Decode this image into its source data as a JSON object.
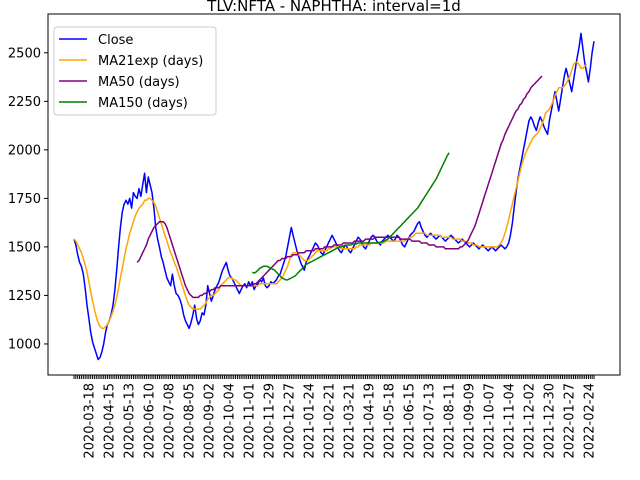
{
  "chart_data": {
    "type": "line",
    "title": "TLV:NFTA - NAPHTHA: interval=1d",
    "xlabel": "",
    "ylabel": "",
    "ylim": [
      840,
      2700
    ],
    "y_ticks": [
      1000,
      1250,
      1500,
      1750,
      2000,
      2250,
      2500
    ],
    "x_ticks": [
      "2020-03-18",
      "2020-04-15",
      "2020-05-13",
      "2020-06-10",
      "2020-07-08",
      "2020-08-05",
      "2020-09-02",
      "2020-10-04",
      "2020-11-01",
      "2020-11-29",
      "2020-12-27",
      "2021-01-24",
      "2021-02-21",
      "2021-03-21",
      "2021-04-19",
      "2021-05-18",
      "2021-06-15",
      "2021-07-13",
      "2021-08-11",
      "2021-09-09",
      "2021-10-07",
      "2021-11-04",
      "2021-12-02",
      "2021-12-30",
      "2022-01-27",
      "2022-02-24"
    ],
    "grid": false,
    "legend_position": "top-left",
    "series": [
      {
        "name": "Close",
        "color": "#0000ff",
        "x_start": 0,
        "values": [
          1540,
          1510,
          1460,
          1420,
          1400,
          1360,
          1290,
          1200,
          1130,
          1060,
          1010,
          980,
          950,
          920,
          930,
          960,
          1000,
          1060,
          1100,
          1120,
          1150,
          1200,
          1280,
          1380,
          1500,
          1600,
          1680,
          1720,
          1740,
          1720,
          1750,
          1700,
          1780,
          1760,
          1750,
          1800,
          1760,
          1820,
          1880,
          1780,
          1860,
          1820,
          1780,
          1700,
          1600,
          1540,
          1500,
          1450,
          1420,
          1380,
          1340,
          1320,
          1300,
          1360,
          1300,
          1260,
          1250,
          1230,
          1200,
          1150,
          1120,
          1100,
          1080,
          1110,
          1150,
          1200,
          1130,
          1100,
          1120,
          1160,
          1150,
          1200,
          1300,
          1260,
          1220,
          1250,
          1280,
          1300,
          1320,
          1350,
          1380,
          1400,
          1420,
          1380,
          1350,
          1340,
          1320,
          1300,
          1280,
          1260,
          1280,
          1300,
          1310,
          1290,
          1320,
          1300,
          1320,
          1280,
          1300,
          1310,
          1330,
          1320,
          1340,
          1300,
          1290,
          1300,
          1320,
          1310,
          1320,
          1330,
          1350,
          1360,
          1390,
          1420,
          1450,
          1500,
          1550,
          1600,
          1560,
          1520,
          1480,
          1450,
          1420,
          1400,
          1380,
          1420,
          1440,
          1460,
          1480,
          1500,
          1520,
          1510,
          1490,
          1470,
          1460,
          1480,
          1500,
          1520,
          1540,
          1560,
          1540,
          1520,
          1500,
          1480,
          1470,
          1490,
          1510,
          1500,
          1480,
          1470,
          1490,
          1510,
          1530,
          1550,
          1540,
          1520,
          1500,
          1490,
          1510,
          1530,
          1550,
          1560,
          1550,
          1530,
          1520,
          1510,
          1530,
          1540,
          1550,
          1560,
          1550,
          1540,
          1530,
          1540,
          1560,
          1550,
          1530,
          1510,
          1500,
          1520,
          1540,
          1560,
          1570,
          1580,
          1600,
          1620,
          1630,
          1600,
          1580,
          1560,
          1550,
          1560,
          1570,
          1560,
          1550,
          1540,
          1550,
          1560,
          1550,
          1540,
          1530,
          1540,
          1550,
          1560,
          1550,
          1540,
          1530,
          1520,
          1530,
          1540,
          1530,
          1520,
          1510,
          1500,
          1510,
          1520,
          1510,
          1500,
          1490,
          1500,
          1510,
          1500,
          1490,
          1480,
          1490,
          1500,
          1490,
          1480,
          1490,
          1500,
          1510,
          1500,
          1490,
          1500,
          1520,
          1560,
          1620,
          1700,
          1780,
          1850,
          1900,
          1950,
          2000,
          2050,
          2100,
          2150,
          2170,
          2150,
          2120,
          2100,
          2140,
          2170,
          2150,
          2120,
          2100,
          2080,
          2150,
          2200,
          2250,
          2300,
          2250,
          2200,
          2260,
          2320,
          2380,
          2420,
          2380,
          2340,
          2300,
          2360,
          2420,
          2480,
          2530,
          2600,
          2520,
          2450,
          2400,
          2350,
          2420,
          2500,
          2560
        ]
      },
      {
        "name": "MA21exp (days)",
        "color": "#ffa500",
        "x_start": 0,
        "values": [
          1540,
          1530,
          1510,
          1490,
          1470,
          1440,
          1410,
          1370,
          1320,
          1270,
          1220,
          1180,
          1140,
          1110,
          1090,
          1080,
          1080,
          1090,
          1100,
          1120,
          1140,
          1170,
          1200,
          1240,
          1290,
          1340,
          1390,
          1440,
          1490,
          1530,
          1570,
          1600,
          1630,
          1660,
          1680,
          1700,
          1710,
          1720,
          1740,
          1740,
          1750,
          1750,
          1740,
          1730,
          1710,
          1680,
          1650,
          1620,
          1590,
          1560,
          1530,
          1500,
          1470,
          1450,
          1420,
          1400,
          1370,
          1340,
          1310,
          1280,
          1250,
          1220,
          1200,
          1190,
          1180,
          1180,
          1180,
          1180,
          1180,
          1190,
          1200,
          1210,
          1230,
          1240,
          1250,
          1250,
          1260,
          1270,
          1280,
          1300,
          1310,
          1320,
          1330,
          1340,
          1340,
          1340,
          1330,
          1330,
          1320,
          1310,
          1300,
          1300,
          1300,
          1300,
          1300,
          1300,
          1300,
          1300,
          1300,
          1300,
          1310,
          1310,
          1310,
          1310,
          1310,
          1310,
          1310,
          1310,
          1310,
          1310,
          1320,
          1330,
          1340,
          1360,
          1380,
          1400,
          1430,
          1460,
          1470,
          1470,
          1470,
          1460,
          1450,
          1440,
          1430,
          1430,
          1430,
          1440,
          1450,
          1460,
          1470,
          1480,
          1480,
          1480,
          1480,
          1480,
          1480,
          1490,
          1490,
          1500,
          1500,
          1500,
          1500,
          1500,
          1490,
          1490,
          1490,
          1490,
          1490,
          1490,
          1490,
          1490,
          1500,
          1500,
          1510,
          1510,
          1510,
          1510,
          1510,
          1510,
          1520,
          1520,
          1520,
          1520,
          1520,
          1520,
          1520,
          1520,
          1530,
          1530,
          1530,
          1530,
          1530,
          1530,
          1530,
          1530,
          1530,
          1530,
          1530,
          1540,
          1540,
          1550,
          1550,
          1560,
          1570,
          1570,
          1570,
          1570,
          1570,
          1570,
          1560,
          1560,
          1560,
          1560,
          1560,
          1560,
          1560,
          1560,
          1550,
          1550,
          1550,
          1550,
          1550,
          1550,
          1540,
          1540,
          1540,
          1540,
          1540,
          1530,
          1530,
          1530,
          1520,
          1520,
          1520,
          1510,
          1510,
          1510,
          1500,
          1500,
          1500,
          1500,
          1500,
          1500,
          1500,
          1500,
          1500,
          1500,
          1500,
          1510,
          1520,
          1540,
          1570,
          1600,
          1640,
          1680,
          1720,
          1760,
          1800,
          1840,
          1880,
          1920,
          1950,
          1980,
          2000,
          2020,
          2040,
          2060,
          2070,
          2080,
          2090,
          2110,
          2130,
          2160,
          2190,
          2200,
          2210,
          2230,
          2250,
          2280,
          2300,
          2320,
          2320,
          2320,
          2330,
          2340,
          2360,
          2380,
          2410,
          2440,
          2450,
          2450,
          2440,
          2420,
          2420,
          2430,
          2440
        ]
      },
      {
        "name": "MA50 (days)",
        "color": "#800080",
        "x_start": 34,
        "values": [
          1420,
          1430,
          1450,
          1470,
          1490,
          1510,
          1540,
          1560,
          1580,
          1600,
          1610,
          1620,
          1630,
          1630,
          1630,
          1620,
          1600,
          1570,
          1540,
          1510,
          1480,
          1450,
          1420,
          1390,
          1360,
          1330,
          1300,
          1280,
          1260,
          1250,
          1240,
          1240,
          1240,
          1240,
          1250,
          1250,
          1260,
          1260,
          1270,
          1270,
          1280,
          1280,
          1290,
          1290,
          1290,
          1300,
          1300,
          1300,
          1300,
          1300,
          1300,
          1300,
          1300,
          1300,
          1300,
          1300,
          1300,
          1300,
          1300,
          1300,
          1300,
          1300,
          1300,
          1310,
          1310,
          1320,
          1330,
          1340,
          1350,
          1360,
          1370,
          1380,
          1390,
          1400,
          1410,
          1420,
          1430,
          1430,
          1440,
          1440,
          1440,
          1450,
          1450,
          1450,
          1460,
          1460,
          1460,
          1470,
          1470,
          1470,
          1470,
          1480,
          1480,
          1480,
          1480,
          1480,
          1490,
          1490,
          1490,
          1490,
          1490,
          1500,
          1500,
          1500,
          1500,
          1500,
          1510,
          1510,
          1510,
          1510,
          1510,
          1520,
          1520,
          1520,
          1520,
          1520,
          1520,
          1530,
          1530,
          1530,
          1530,
          1530,
          1530,
          1540,
          1540,
          1540,
          1540,
          1540,
          1550,
          1550,
          1550,
          1550,
          1550,
          1550,
          1550,
          1550,
          1550,
          1550,
          1550,
          1550,
          1550,
          1550,
          1540,
          1540,
          1540,
          1540,
          1540,
          1540,
          1530,
          1530,
          1530,
          1530,
          1530,
          1520,
          1520,
          1520,
          1520,
          1510,
          1510,
          1510,
          1510,
          1500,
          1500,
          1500,
          1500,
          1500,
          1490,
          1490,
          1490,
          1490,
          1490,
          1490,
          1490,
          1490,
          1500,
          1500,
          1510,
          1520,
          1530,
          1550,
          1570,
          1590,
          1610,
          1640,
          1670,
          1700,
          1730,
          1760,
          1790,
          1820,
          1850,
          1880,
          1910,
          1940,
          1970,
          2000,
          2030,
          2050,
          2080,
          2100,
          2120,
          2140,
          2160,
          2180,
          2200,
          2210,
          2230,
          2240,
          2260,
          2270,
          2290,
          2300,
          2320,
          2330,
          2340,
          2350,
          2360,
          2370,
          2380
        ]
      },
      {
        "name": "MA150 (days)",
        "color": "#008000",
        "x_start": 96,
        "values": [
          1370,
          1365,
          1370,
          1380,
          1390,
          1395,
          1400,
          1400,
          1400,
          1395,
          1390,
          1385,
          1380,
          1370,
          1360,
          1350,
          1340,
          1335,
          1330,
          1330,
          1335,
          1340,
          1345,
          1350,
          1360,
          1370,
          1380,
          1390,
          1400,
          1410,
          1415,
          1420,
          1425,
          1430,
          1435,
          1440,
          1445,
          1450,
          1455,
          1460,
          1465,
          1470,
          1475,
          1480,
          1485,
          1490,
          1495,
          1500,
          1500,
          1505,
          1505,
          1510,
          1510,
          1510,
          1515,
          1515,
          1515,
          1520,
          1520,
          1520,
          1520,
          1520,
          1520,
          1520,
          1520,
          1520,
          1520,
          1520,
          1520,
          1525,
          1525,
          1530,
          1535,
          1540,
          1550,
          1560,
          1570,
          1580,
          1590,
          1600,
          1610,
          1620,
          1630,
          1640,
          1650,
          1660,
          1670,
          1680,
          1690,
          1700,
          1715,
          1730,
          1745,
          1760,
          1775,
          1790,
          1805,
          1820,
          1835,
          1850,
          1870,
          1890,
          1910,
          1930,
          1950,
          1970,
          1985
        ]
      }
    ]
  }
}
